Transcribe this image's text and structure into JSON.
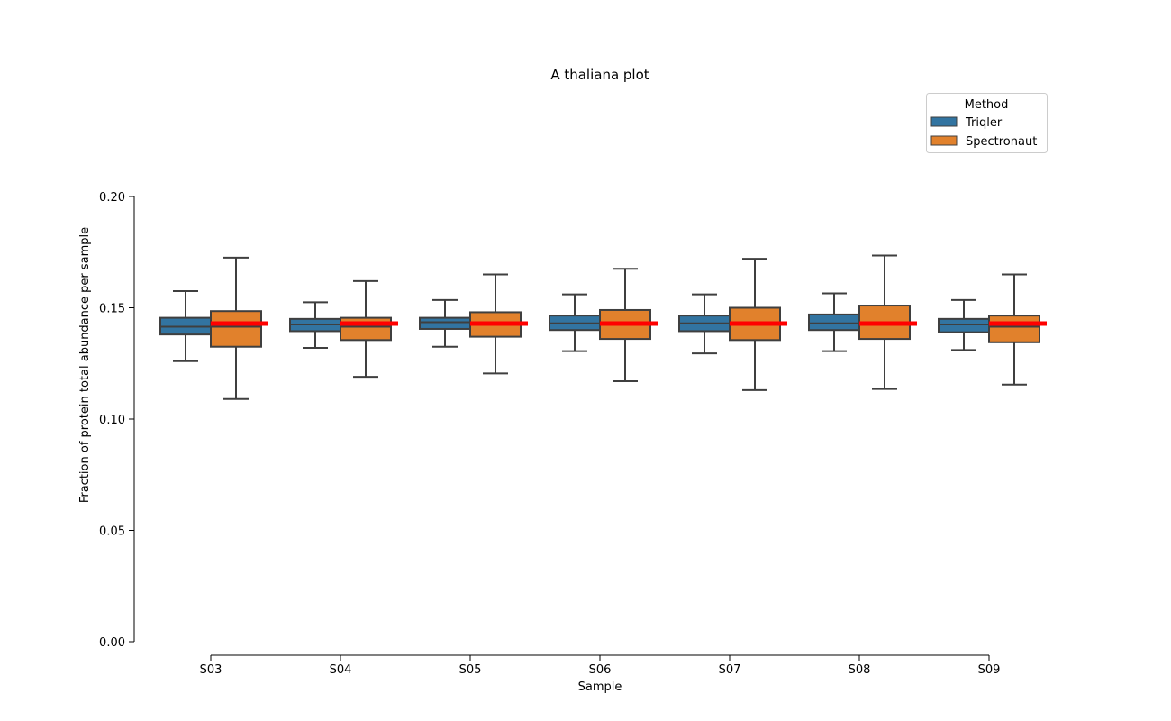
{
  "chart_data": {
    "type": "box",
    "title": "A thaliana plot",
    "xlabel": "Sample",
    "ylabel": "Fraction of protein total abundance per sample",
    "ylim": [
      0,
      0.2
    ],
    "yticks": [
      "0.00",
      "0.05",
      "0.10",
      "0.15",
      "0.20"
    ],
    "grid": false,
    "legend": {
      "title": "Method",
      "placement": "top-right"
    },
    "categories": [
      "S03",
      "S04",
      "S05",
      "S06",
      "S07",
      "S08",
      "S09"
    ],
    "reference_line": {
      "color": "#ff0000",
      "value": 0.1429,
      "label": ""
    },
    "series": [
      {
        "name": "Triqler",
        "color": "#3274a1",
        "boxes": [
          {
            "whislo": 0.126,
            "q1": 0.138,
            "med": 0.1415,
            "q3": 0.1455,
            "whishi": 0.1575
          },
          {
            "whislo": 0.132,
            "q1": 0.1395,
            "med": 0.1425,
            "q3": 0.145,
            "whishi": 0.1525
          },
          {
            "whislo": 0.1325,
            "q1": 0.1405,
            "med": 0.1435,
            "q3": 0.1455,
            "whishi": 0.1535
          },
          {
            "whislo": 0.1305,
            "q1": 0.14,
            "med": 0.143,
            "q3": 0.1465,
            "whishi": 0.156
          },
          {
            "whislo": 0.1295,
            "q1": 0.1395,
            "med": 0.143,
            "q3": 0.1465,
            "whishi": 0.156
          },
          {
            "whislo": 0.1305,
            "q1": 0.14,
            "med": 0.143,
            "q3": 0.147,
            "whishi": 0.1565
          },
          {
            "whislo": 0.131,
            "q1": 0.139,
            "med": 0.1425,
            "q3": 0.145,
            "whishi": 0.1535
          }
        ]
      },
      {
        "name": "Spectronaut",
        "color": "#e1812c",
        "boxes": [
          {
            "whislo": 0.109,
            "q1": 0.1325,
            "med": 0.1415,
            "q3": 0.1485,
            "whishi": 0.1725
          },
          {
            "whislo": 0.119,
            "q1": 0.1355,
            "med": 0.1415,
            "q3": 0.1455,
            "whishi": 0.162
          },
          {
            "whislo": 0.1205,
            "q1": 0.137,
            "med": 0.143,
            "q3": 0.148,
            "whishi": 0.165
          },
          {
            "whislo": 0.117,
            "q1": 0.136,
            "med": 0.1425,
            "q3": 0.149,
            "whishi": 0.1675
          },
          {
            "whislo": 0.113,
            "q1": 0.1355,
            "med": 0.143,
            "q3": 0.15,
            "whishi": 0.172
          },
          {
            "whislo": 0.1135,
            "q1": 0.136,
            "med": 0.1425,
            "q3": 0.151,
            "whishi": 0.1735
          },
          {
            "whislo": 0.1155,
            "q1": 0.1345,
            "med": 0.1415,
            "q3": 0.1465,
            "whishi": 0.165
          }
        ]
      }
    ]
  }
}
